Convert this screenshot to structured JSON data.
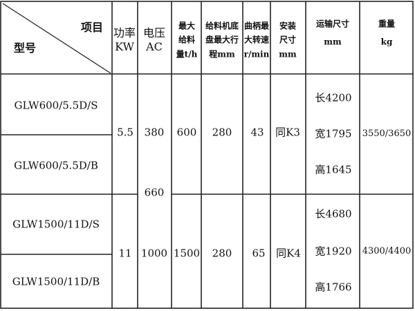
{
  "header": {
    "corner_item": "项目",
    "corner_model": "型号",
    "power": [
      "功率",
      "KW"
    ],
    "voltage": [
      "电压",
      "AC"
    ],
    "max_feed": [
      "最大",
      "给料",
      "量t/h"
    ],
    "stroke": [
      "给料机底",
      "盘最大行",
      "程mm"
    ],
    "speed": [
      "曲柄最",
      "大转速",
      "r/min"
    ],
    "install": [
      "安装",
      "尺寸",
      "mm"
    ],
    "transport": [
      "运输尺寸",
      "mm"
    ],
    "weight": [
      "重量",
      "kg"
    ]
  },
  "groups": [
    {
      "models": [
        "GLW600/5.5D/S",
        "GLW600/5.5D/B"
      ],
      "power": "5.5",
      "max_feed": "600",
      "stroke": "280",
      "speed": "43",
      "install": "同K3",
      "transport": [
        "长4200",
        "宽1795",
        "高1645"
      ],
      "weight": "3550/3650"
    },
    {
      "models": [
        "GLW1500/11D/S",
        "GLW1500/11D/B"
      ],
      "power": "11",
      "max_feed": "1500",
      "stroke": "280",
      "speed": "65",
      "install": "同K4",
      "transport": [
        "长4680",
        "宽1920",
        "高1766"
      ],
      "weight": "4300/4400"
    }
  ],
  "voltage_values": [
    "380",
    "660",
    "1000"
  ]
}
